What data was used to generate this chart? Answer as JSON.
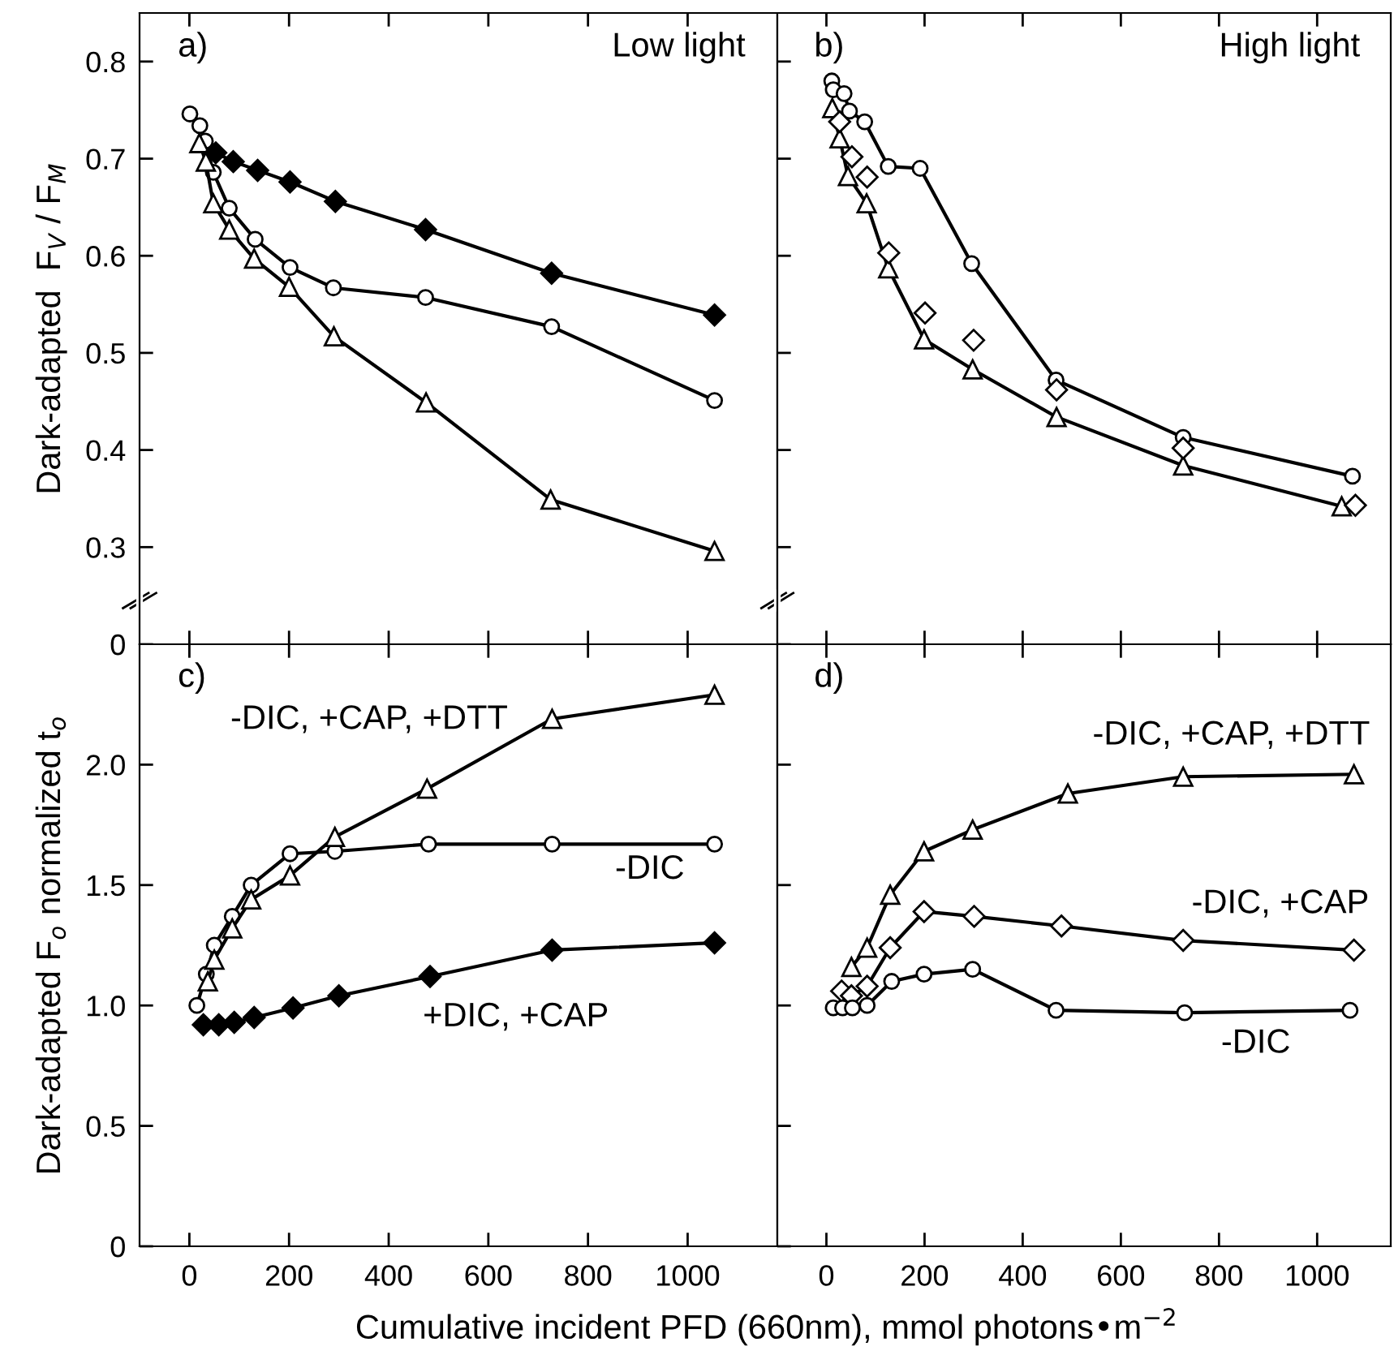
{
  "chart_data": [
    {
      "type": "line",
      "ylabel": "Dark-adapted  F$_{V}$ / F$_{M}$",
      "annotations": [
        "a)",
        "Low light"
      ],
      "xlim": [
        -100,
        1180
      ],
      "xticks": [
        0,
        200,
        400,
        600,
        800,
        1000
      ],
      "ylim": [
        0.2,
        0.85
      ],
      "yticks": [
        {
          "value": 0.2,
          "label": "0"
        },
        0.3,
        0.4,
        0.5,
        0.6,
        0.7,
        0.8
      ],
      "tick_labels": "y",
      "series": [
        {
          "color": "#ffffff",
          "marker": "circle",
          "x": [
            1,
            21,
            32,
            48,
            80,
            132,
            202,
            289,
            474,
            727,
            1054
          ],
          "values": [
            0.746,
            0.734,
            0.718,
            0.686,
            0.649,
            0.617,
            0.588,
            0.567,
            0.557,
            0.527,
            0.451
          ]
        },
        {
          "color": "#ffffff",
          "marker": "triangle",
          "x": [
            20,
            33,
            48,
            80,
            130,
            200,
            290,
            475,
            725,
            1054
          ],
          "values": [
            0.716,
            0.697,
            0.654,
            0.627,
            0.597,
            0.568,
            0.517,
            0.449,
            0.349,
            0.296
          ]
        },
        {
          "color": "#000000",
          "marker": "diamond",
          "x": [
            53,
            88,
            137,
            202,
            293,
            474,
            727,
            1054
          ],
          "values": [
            0.706,
            0.697,
            0.688,
            0.676,
            0.656,
            0.627,
            0.582,
            0.539
          ]
        }
      ]
    },
    {
      "type": "line",
      "annotations": [
        "b)",
        "High light"
      ],
      "xlim": [
        -100,
        1150
      ],
      "xticks": [
        0,
        200,
        400,
        600,
        800,
        1000
      ],
      "ylim": [
        0.2,
        0.85
      ],
      "yticks": [
        {
          "value": 0.2,
          "label": null
        },
        0.3,
        0.4,
        0.5,
        0.6,
        0.7,
        0.8
      ],
      "tick_labels": false,
      "series": [
        {
          "color": "#ffffff",
          "marker": "circle",
          "x": [
            11,
            14,
            36,
            47,
            78,
            126,
            191,
            296,
            468,
            727,
            1072
          ],
          "values": [
            0.78,
            0.771,
            0.767,
            0.749,
            0.738,
            0.692,
            0.69,
            0.592,
            0.472,
            0.413,
            0.373
          ]
        },
        {
          "color": "#ffffff",
          "marker": "triangle",
          "x": [
            12,
            27,
            44,
            82,
            126,
            199,
            298,
            469,
            727,
            1050
          ],
          "values": [
            0.752,
            0.721,
            0.682,
            0.654,
            0.587,
            0.514,
            0.483,
            0.434,
            0.384,
            0.342
          ]
        },
        {
          "type": "scatter",
          "color": "#ffffff",
          "marker": "diamond",
          "x": [
            27,
            52,
            83,
            127,
            201,
            300,
            469,
            727,
            1078
          ],
          "values": [
            0.738,
            0.702,
            0.681,
            0.603,
            0.541,
            0.513,
            0.462,
            0.402,
            0.343
          ]
        }
      ]
    },
    {
      "type": "line",
      "ylabel": "Dark-adapted F$_{o}$ normalized t$_{o}$",
      "xlabel": "Cumulative incident PFD (660nm), mmol photons•m$^{−2}$",
      "annotations": [
        "c)",
        "-DIC, +CAP, +DTT",
        "-DIC",
        "+DIC, +CAP"
      ],
      "xlim": [
        -100,
        1180
      ],
      "xticks": [
        0,
        200,
        400,
        600,
        800,
        1000
      ],
      "ylim": [
        0,
        2.5
      ],
      "yticks": [
        0,
        0.5,
        {
          "value": 1.0,
          "label": "1.0"
        },
        1.5,
        {
          "value": 2.0,
          "label": "2.0"
        }
      ],
      "series": [
        {
          "color": "#ffffff",
          "marker": "circle",
          "x": [
            15,
            34,
            50,
            86,
            124,
            202,
            292,
            480,
            728,
            1054
          ],
          "values": [
            1.0,
            1.13,
            1.25,
            1.37,
            1.5,
            1.63,
            1.64,
            1.67,
            1.67,
            1.67
          ]
        },
        {
          "color": "#ffffff",
          "marker": "triangle",
          "x": [
            37,
            50,
            86,
            124,
            202,
            292,
            477,
            728,
            1054
          ],
          "values": [
            1.1,
            1.19,
            1.32,
            1.44,
            1.54,
            1.7,
            1.9,
            2.19,
            2.29
          ]
        },
        {
          "color": "#000000",
          "marker": "diamond",
          "x": [
            28,
            59,
            90,
            130,
            208,
            300,
            483,
            728,
            1054
          ],
          "values": [
            0.92,
            0.92,
            0.93,
            0.95,
            0.99,
            1.04,
            1.12,
            1.23,
            1.26
          ]
        }
      ]
    },
    {
      "type": "line",
      "annotations": [
        "d)",
        "-DIC, +CAP, +DTT",
        "-DIC, +CAP",
        "-DIC"
      ],
      "xlim": [
        -100,
        1150
      ],
      "xticks": [
        0,
        200,
        400,
        600,
        800,
        1000
      ],
      "ylim": [
        0,
        2.5
      ],
      "yticks": [
        0,
        0.5,
        1.0,
        1.5,
        2.0
      ],
      "tick_labels": "x",
      "series": [
        {
          "color": "#ffffff",
          "marker": "triangle",
          "x": [
            51,
            83,
            130,
            199,
            298,
            492,
            727,
            1075
          ],
          "values": [
            1.16,
            1.24,
            1.46,
            1.64,
            1.73,
            1.88,
            1.95,
            1.96
          ]
        },
        {
          "color": "#ffffff",
          "marker": "diamond",
          "x": [
            31,
            51,
            83,
            130,
            199,
            301,
            479,
            727,
            1075
          ],
          "values": [
            1.06,
            1.04,
            1.08,
            1.24,
            1.39,
            1.37,
            1.33,
            1.27,
            1.23
          ]
        },
        {
          "color": "#ffffff",
          "marker": "circle",
          "x": [
            14,
            33,
            53,
            83,
            133,
            199,
            298,
            468,
            730,
            1067
          ],
          "values": [
            0.99,
            0.99,
            0.99,
            1.0,
            1.1,
            1.13,
            1.15,
            0.98,
            0.97,
            0.98
          ]
        }
      ]
    }
  ]
}
